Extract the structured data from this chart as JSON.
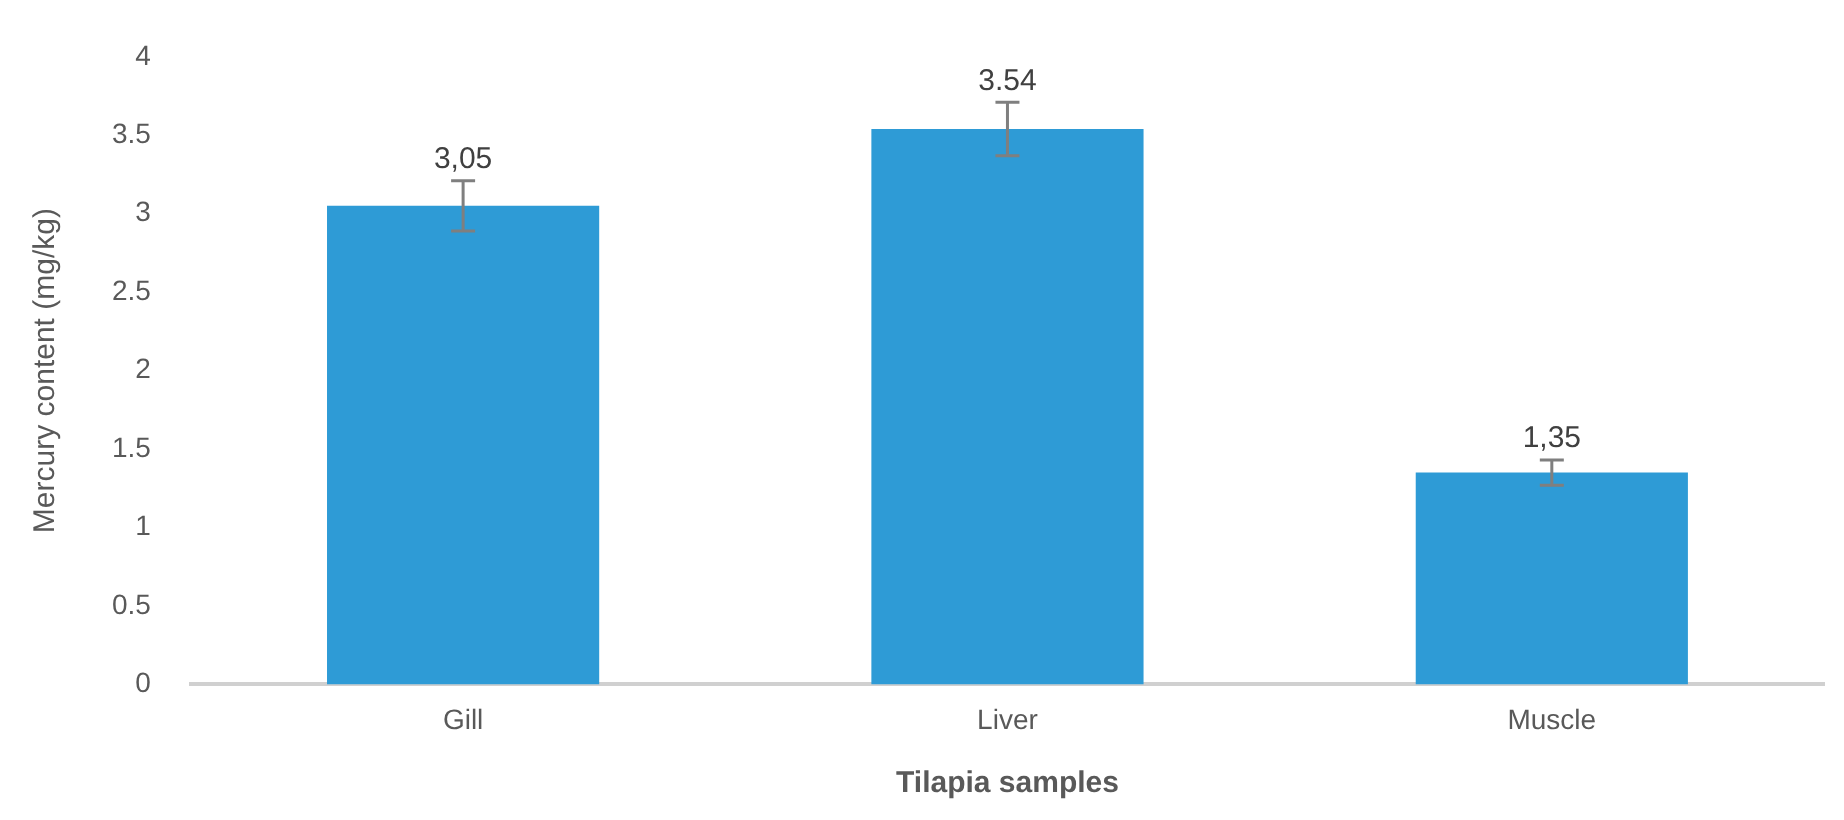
{
  "chart_data": {
    "type": "bar",
    "xlabel": "Tilapia samples",
    "ylabel": "Mercury content (mg/kg)",
    "categories": [
      "Gill",
      "Liver",
      "Muscle"
    ],
    "values": [
      3.05,
      3.54,
      1.35
    ],
    "errors": [
      0.16,
      0.17,
      0.08
    ],
    "value_labels": [
      "3,05",
      "3.54",
      "1,35"
    ],
    "color": "#2e9bd6",
    "ylim": [
      0,
      4
    ],
    "yticks": [
      0,
      0.5,
      1,
      1.5,
      2,
      2.5,
      3,
      3.5,
      4
    ],
    "grid": false,
    "legend": false
  }
}
